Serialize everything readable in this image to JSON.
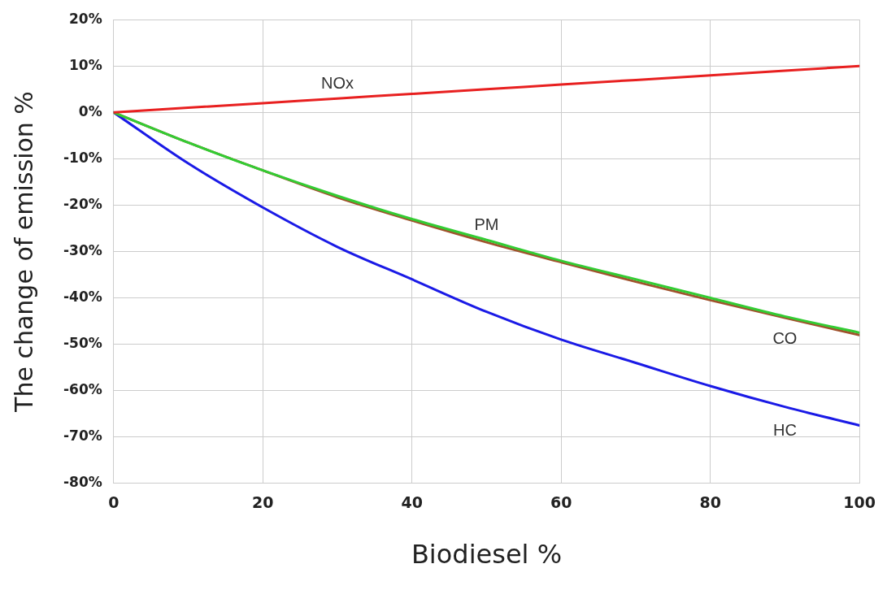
{
  "chart_data": {
    "type": "line",
    "xlabel": "Biodiesel %",
    "ylabel": "The change of emission %",
    "x": [
      0,
      10,
      20,
      30,
      40,
      50,
      60,
      70,
      80,
      90,
      100
    ],
    "series": [
      {
        "name": "NOx",
        "color": "#e82020",
        "values": [
          0,
          1,
          2,
          3,
          4,
          5,
          6,
          7,
          8,
          9,
          10
        ]
      },
      {
        "name": "PM",
        "color": "#33cc33",
        "values": [
          0,
          -6.5,
          -12.5,
          -18,
          -23,
          -27.5,
          -32,
          -36,
          -40,
          -44,
          -47.5
        ]
      },
      {
        "name": "CO",
        "color": "#a0522d",
        "values": [
          0,
          -6.5,
          -12.5,
          -18.3,
          -23.3,
          -28,
          -32.3,
          -36.5,
          -40.5,
          -44.3,
          -48
        ]
      },
      {
        "name": "HC",
        "color": "#1a1ae6",
        "values": [
          0,
          -11,
          -20.5,
          -29,
          -36,
          -43,
          -49,
          -54,
          -59,
          -63.5,
          -67.5
        ]
      }
    ],
    "xlim": [
      0,
      100
    ],
    "xticks": [
      0,
      20,
      40,
      60,
      80,
      100
    ],
    "ylim": [
      -80,
      20
    ],
    "yticks": [
      {
        "value": -80,
        "label": "-80%"
      },
      {
        "value": -70,
        "label": "-70%"
      },
      {
        "value": -60,
        "label": "-60%"
      },
      {
        "value": -50,
        "label": "-50%"
      },
      {
        "value": -40,
        "label": "-40%"
      },
      {
        "value": -30,
        "label": "-30%"
      },
      {
        "value": -20,
        "label": "-20%"
      },
      {
        "value": -10,
        "label": "-10%"
      },
      {
        "value": 0,
        "label": "0%"
      },
      {
        "value": 10,
        "label": "10%"
      },
      {
        "value": 20,
        "label": "20%"
      }
    ],
    "grid": true,
    "legend": false,
    "marker": "none",
    "line_style": "solid"
  }
}
